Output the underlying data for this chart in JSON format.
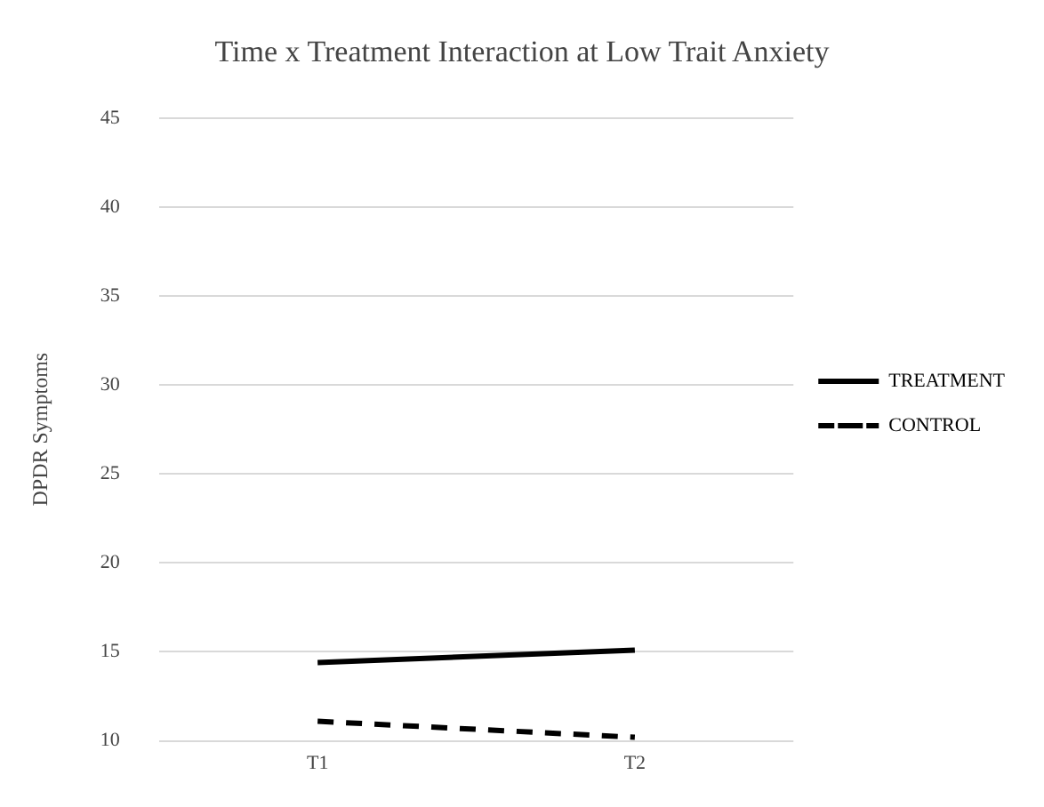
{
  "chart_data": {
    "type": "line",
    "title": "Time x Treatment Interaction at Low Trait Anxiety",
    "ylabel": "DPDR Symptoms",
    "categories": [
      "T1",
      "T2"
    ],
    "series": [
      {
        "name": "TREATMENT",
        "color": "#000000",
        "values": [
          14.4,
          15.1
        ],
        "line_style": "solid"
      },
      {
        "name": "CONTROL",
        "color": "#000000",
        "values": [
          11.1,
          10.2
        ],
        "line_style": "dashed"
      }
    ],
    "ylim": [
      10,
      45
    ],
    "yticks": [
      10,
      15,
      20,
      25,
      30,
      35,
      40,
      45
    ],
    "grid": "y",
    "legend": "right",
    "marker": "none"
  }
}
